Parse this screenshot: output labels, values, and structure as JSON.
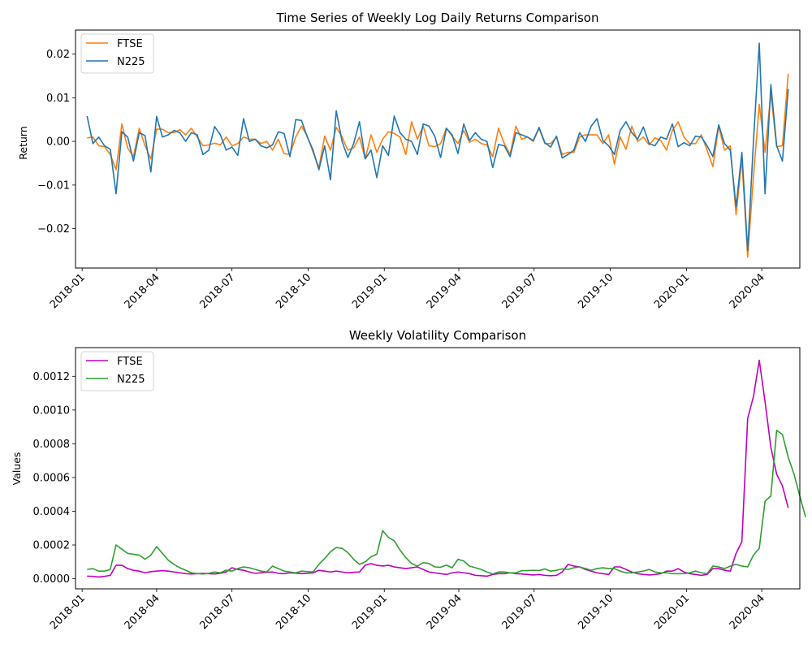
{
  "chart_data": [
    {
      "type": "line",
      "title": "Time Series of Weekly Log Daily Returns Comparison",
      "xlabel": "",
      "ylabel": "Return",
      "x_ticks": [
        "2018-01",
        "2018-04",
        "2018-07",
        "2018-10",
        "2019-01",
        "2019-04",
        "2019-07",
        "2019-10",
        "2020-01",
        "2020-04"
      ],
      "y_ticks": [
        "−0.02",
        "−0.01",
        "0.00",
        "0.01",
        "0.02"
      ],
      "ylim": [
        -0.029,
        0.0255
      ],
      "x_start": "2018-01-07",
      "x_step_days": 7,
      "grid": false,
      "legend": "top-left",
      "series": [
        {
          "name": "FTSE",
          "color": "#ff7f0e",
          "values": [
            0.0008,
            0.001,
            -0.001,
            -0.0012,
            -0.003,
            -0.0065,
            0.004,
            -0.0015,
            -0.0035,
            0.003,
            -0.001,
            -0.004,
            0.0028,
            0.0028,
            0.002,
            0.002,
            0.0027,
            0.0015,
            0.003,
            0.001,
            -0.001,
            -0.0008,
            -0.0004,
            -0.0008,
            0.001,
            -0.001,
            -0.0005,
            0.001,
            0.0005,
            0.0005,
            -0.0005,
            0.0,
            -0.002,
            0.0005,
            -0.0028,
            -0.003,
            0.001,
            0.0035,
            0.0012,
            -0.0025,
            -0.006,
            0.0012,
            -0.002,
            0.0032,
            0.001,
            -0.002,
            -0.0015,
            0.001,
            -0.004,
            0.0015,
            -0.0025,
            0.0005,
            0.0022,
            0.0018,
            0.001,
            -0.003,
            0.0045,
            0.0005,
            0.0035,
            -0.001,
            -0.0012,
            -0.0005,
            0.003,
            0.0012,
            -0.0005,
            0.0025,
            -0.0002,
            0.0005,
            -0.0005,
            -0.0008,
            -0.0035,
            0.003,
            -0.0005,
            -0.003,
            0.0035,
            0.0005,
            0.001,
            0.0,
            0.003,
            -0.0005,
            -0.0005,
            0.001,
            -0.003,
            -0.0025,
            -0.0025,
            0.001,
            0.0015,
            0.0015,
            0.0015,
            -0.0005,
            0.0015,
            -0.0052,
            0.001,
            -0.0018,
            0.0035,
            0.0,
            0.001,
            -0.0008,
            0.0008,
            0.0002,
            -0.002,
            0.0025,
            0.0045,
            0.001,
            -0.0005,
            -0.0005,
            0.0015,
            -0.002,
            -0.0058,
            0.0035,
            -0.002,
            -0.001,
            -0.0168,
            -0.004,
            -0.0265,
            -0.008,
            0.0085,
            -0.0025,
            0.011,
            -0.0012,
            -0.001,
            0.0155
          ]
        },
        {
          "name": "N225",
          "color": "#1f77b4",
          "values": [
            0.0058,
            -0.0005,
            0.001,
            -0.001,
            -0.0018,
            -0.012,
            0.0022,
            0.001,
            -0.0045,
            0.002,
            0.0013,
            -0.007,
            0.0057,
            0.001,
            0.0015,
            0.0025,
            0.002,
            0.0,
            0.002,
            0.0015,
            -0.003,
            -0.002,
            0.0034,
            0.0015,
            -0.002,
            -0.0013,
            -0.0032,
            0.0052,
            0.0,
            0.0005,
            -0.001,
            -0.0015,
            -0.0008,
            0.0022,
            0.0018,
            -0.0035,
            0.005,
            0.0048,
            0.001,
            -0.002,
            -0.0065,
            -0.001,
            -0.0088,
            0.007,
            0.0,
            -0.0037,
            -0.0005,
            0.0045,
            -0.004,
            -0.002,
            -0.0083,
            -0.001,
            -0.0032,
            0.0058,
            0.002,
            0.0005,
            0.0,
            -0.003,
            0.004,
            0.0035,
            0.0012,
            -0.0037,
            0.003,
            0.0015,
            -0.0028,
            0.004,
            0.0002,
            0.002,
            0.0005,
            0.0,
            -0.006,
            -0.0007,
            -0.001,
            -0.0035,
            0.002,
            0.0015,
            0.001,
            0.0002,
            0.0032,
            -0.0003,
            -0.0013,
            0.0012,
            -0.0038,
            -0.003,
            -0.002,
            0.002,
            0.0,
            0.0035,
            0.0052,
            0.0002,
            -0.001,
            -0.003,
            0.0025,
            0.0045,
            0.002,
            0.0005,
            0.0033,
            -0.0005,
            -0.001,
            0.001,
            0.0005,
            0.004,
            -0.0012,
            -0.0003,
            -0.001,
            0.0012,
            0.001,
            -0.001,
            -0.0035,
            0.0038,
            -0.0005,
            -0.002,
            -0.015,
            -0.0025,
            -0.025,
            0.0,
            0.0225,
            -0.012,
            0.013,
            -0.001,
            -0.0045,
            0.012
          ]
        }
      ]
    },
    {
      "type": "line",
      "title": "Weekly Volatility Comparison",
      "xlabel": "",
      "ylabel": "Values",
      "x_ticks": [
        "2018-01",
        "2018-04",
        "2018-07",
        "2018-10",
        "2019-01",
        "2019-04",
        "2019-07",
        "2019-10",
        "2020-01",
        "2020-04"
      ],
      "y_ticks": [
        "0.0000",
        "0.0002",
        "0.0004",
        "0.0006",
        "0.0008",
        "0.0010",
        "0.0012"
      ],
      "ylim": [
        -6e-05,
        0.00137
      ],
      "x_start": "2018-01-07",
      "x_step_days": 7,
      "grid": false,
      "legend": "top-left",
      "series": [
        {
          "name": "FTSE",
          "color": "#bf00bf",
          "values": [
            1.5e-05,
            1.4e-05,
            1e-05,
            1.4e-05,
            2e-05,
            8e-05,
            8e-05,
            6e-05,
            5e-05,
            4.5e-05,
            3.5e-05,
            4.2e-05,
            4.5e-05,
            4.8e-05,
            4.5e-05,
            4e-05,
            3.5e-05,
            3e-05,
            2.8e-05,
            3e-05,
            3.2e-05,
            3e-05,
            2.8e-05,
            3.2e-05,
            4e-05,
            6.5e-05,
            5.5e-05,
            5e-05,
            4e-05,
            3.2e-05,
            3.5e-05,
            3.8e-05,
            4e-05,
            3.2e-05,
            3e-05,
            3.5e-05,
            3.3e-05,
            3e-05,
            3.2e-05,
            3.5e-05,
            5e-05,
            4.5e-05,
            4e-05,
            4.5e-05,
            4e-05,
            3.5e-05,
            3.8e-05,
            4e-05,
            8e-05,
            9e-05,
            8e-05,
            7.5e-05,
            8e-05,
            7e-05,
            6.5e-05,
            6e-05,
            6.5e-05,
            7e-05,
            5.5e-05,
            4e-05,
            3.5e-05,
            3e-05,
            2.5e-05,
            3.5e-05,
            4e-05,
            3.5e-05,
            3e-05,
            2e-05,
            1.8e-05,
            1.5e-05,
            2.5e-05,
            3e-05,
            3e-05,
            3.5e-05,
            3e-05,
            2.8e-05,
            2.5e-05,
            2.2e-05,
            2.5e-05,
            2e-05,
            1.8e-05,
            2e-05,
            4e-05,
            8.5e-05,
            7.5e-05,
            7e-05,
            5.5e-05,
            4.5e-05,
            3.5e-05,
            3e-05,
            2.5e-05,
            7e-05,
            7e-05,
            5.5e-05,
            4e-05,
            3e-05,
            2.5e-05,
            2.2e-05,
            2.5e-05,
            3e-05,
            4.5e-05,
            4.5e-05,
            6e-05,
            4e-05,
            3e-05,
            2.5e-05,
            2e-05,
            2.5e-05,
            6e-05,
            6e-05,
            5e-05,
            4.5e-05,
            0.00015,
            0.00022,
            0.00095,
            0.00108,
            0.001295,
            0.00105,
            0.00078,
            0.00062,
            0.00055,
            0.00042
          ]
        },
        {
          "name": "N225",
          "color": "#2ca02c",
          "values": [
            5.5e-05,
            6e-05,
            4.5e-05,
            4.5e-05,
            5.5e-05,
            0.0002,
            0.000175,
            0.00015,
            0.000145,
            0.00014,
            0.000115,
            0.00014,
            0.00019,
            0.00015,
            0.00011,
            8.5e-05,
            6.5e-05,
            5e-05,
            3.5e-05,
            3e-05,
            2.8e-05,
            3.2e-05,
            4e-05,
            3.5e-05,
            5e-05,
            4.5e-05,
            6e-05,
            7e-05,
            6.5e-05,
            5.5e-05,
            4.5e-05,
            4e-05,
            7.5e-05,
            6e-05,
            4.5e-05,
            4e-05,
            3.5e-05,
            4.5e-05,
            4.2e-05,
            4e-05,
            8.5e-05,
            0.00012,
            0.00016,
            0.000185,
            0.00018,
            0.000155,
            0.000115,
            8.5e-05,
            0.0001,
            0.00013,
            0.000145,
            0.000285,
            0.000245,
            0.000225,
            0.00017,
            0.000125,
            9e-05,
            7.5e-05,
            9.5e-05,
            9e-05,
            7e-05,
            6.8e-05,
            8e-05,
            6.5e-05,
            0.000115,
            0.000105,
            7.5e-05,
            6.5e-05,
            5.5e-05,
            4e-05,
            2.8e-05,
            4e-05,
            4e-05,
            3.5e-05,
            3.5e-05,
            4.8e-05,
            4.8e-05,
            5e-05,
            4.8e-05,
            5.8e-05,
            4.5e-05,
            5e-05,
            5.8e-05,
            5.5e-05,
            6.5e-05,
            7e-05,
            6e-05,
            5e-05,
            6e-05,
            6.5e-05,
            6e-05,
            6e-05,
            4.5e-05,
            3.5e-05,
            3.5e-05,
            4e-05,
            4.5e-05,
            5.5e-05,
            4e-05,
            3.5e-05,
            3.5e-05,
            3e-05,
            3e-05,
            3e-05,
            3.5e-05,
            4.5e-05,
            3.5e-05,
            3e-05,
            7.5e-05,
            7e-05,
            6e-05,
            7.5e-05,
            8.5e-05,
            7.5e-05,
            7e-05,
            0.00014,
            0.00018,
            0.00046,
            0.00049,
            0.00088,
            0.000855,
            0.00072,
            0.00062,
            0.00049,
            0.000365
          ]
        }
      ]
    }
  ]
}
